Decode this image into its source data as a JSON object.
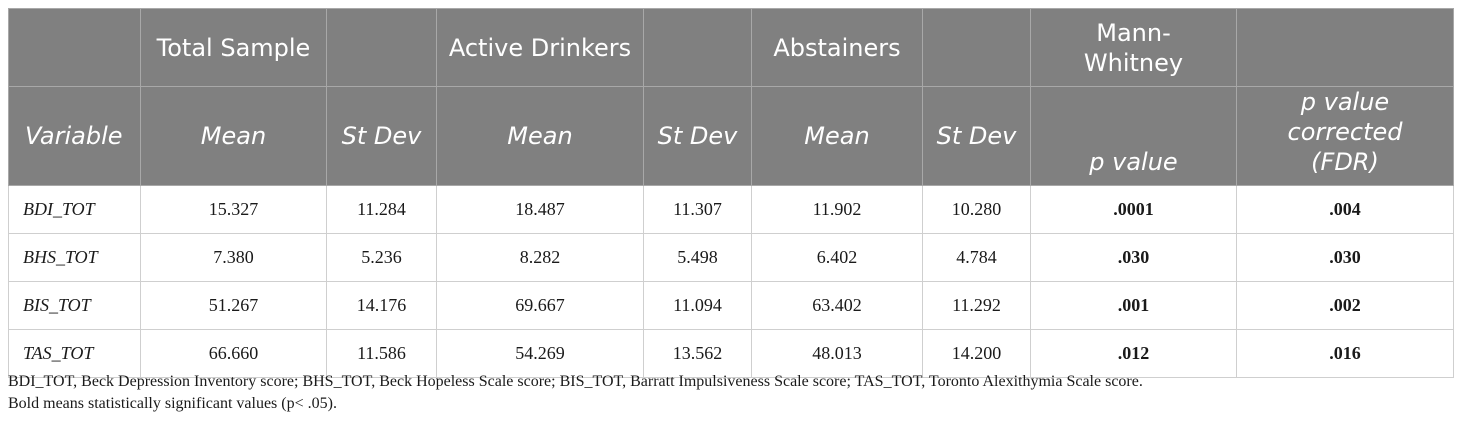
{
  "table": {
    "group_headers": {
      "total_sample": "Total Sample",
      "active_drinkers": "Active Drinkers",
      "abstainers": "Abstainers",
      "mann_whitney": "Mann-Whitney"
    },
    "column_headers": {
      "variable": "Variable",
      "ts_mean": "Mean",
      "ts_sd": "St Dev",
      "ad_mean": "Mean",
      "ad_sd": "St Dev",
      "ab_mean": "Mean",
      "ab_sd": "St Dev",
      "p_value": "p value",
      "p_corrected": "p value corrected (FDR)"
    },
    "rows": [
      {
        "variable": "BDI_TOT",
        "ts_mean": "15.327",
        "ts_sd": "11.284",
        "ad_mean": "18.487",
        "ad_sd": "11.307",
        "ab_mean": "11.902",
        "ab_sd": "10.280",
        "p": ".0001",
        "p_fdr": ".004"
      },
      {
        "variable": "BHS_TOT",
        "ts_mean": "7.380",
        "ts_sd": "5.236",
        "ad_mean": "8.282",
        "ad_sd": "5.498",
        "ab_mean": "6.402",
        "ab_sd": "4.784",
        "p": ".030",
        "p_fdr": ".030"
      },
      {
        "variable": "BIS_TOT",
        "ts_mean": "51.267",
        "ts_sd": "14.176",
        "ad_mean": "69.667",
        "ad_sd": "11.094",
        "ab_mean": "63.402",
        "ab_sd": "11.292",
        "p": ".001",
        "p_fdr": ".002"
      },
      {
        "variable": "TAS_TOT",
        "ts_mean": "66.660",
        "ts_sd": "11.586",
        "ad_mean": "54.269",
        "ad_sd": "13.562",
        "ab_mean": "48.013",
        "ab_sd": "14.200",
        "p": ".012",
        "p_fdr": ".016"
      }
    ]
  },
  "notes": {
    "abbreviations": "BDI_TOT, Beck Depression Inventory score; BHS_TOT, Beck Hopeless Scale score; BIS_TOT, Barratt Impulsiveness Scale score; TAS_TOT, Toronto Alexithymia Scale score.",
    "bold_note": "Bold means statistically significant values (p< .05)."
  },
  "colors": {
    "header_bg": "#808080",
    "header_text": "#ffffff",
    "border": "#cfcfcf"
  }
}
